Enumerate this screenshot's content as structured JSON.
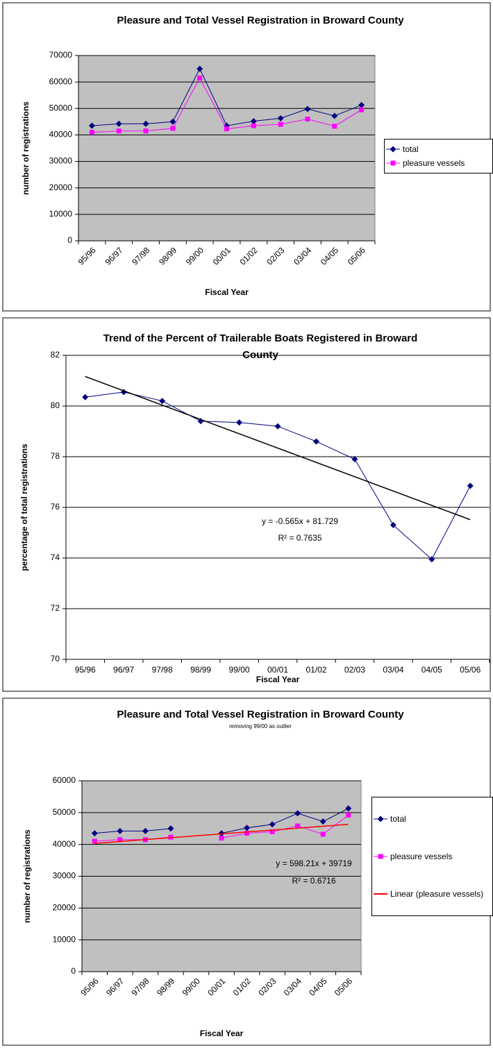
{
  "chart_data": [
    {
      "type": "line",
      "title": "Pleasure and Total Vessel Registration in Broward County",
      "x_label": "Fiscal Year",
      "y_label": "number of registrations",
      "categories": [
        "95/96",
        "96/97",
        "97/98",
        "98/99",
        "99/00",
        "00/01",
        "01/02",
        "02/03",
        "03/04",
        "04/05",
        "05/06"
      ],
      "series": [
        {
          "name": "total",
          "color": "#000080",
          "marker": "diamond",
          "values": [
            43500,
            44200,
            44200,
            45000,
            65000,
            43500,
            45200,
            46300,
            49800,
            47200,
            51300
          ]
        },
        {
          "name": "pleasure vessels",
          "color": "#ff00ff",
          "marker": "square",
          "values": [
            41000,
            41500,
            41500,
            42500,
            61500,
            42300,
            43500,
            44000,
            46000,
            43300,
            49500
          ]
        }
      ],
      "ylim": [
        0,
        70000
      ],
      "yticks": [
        0,
        10000,
        20000,
        30000,
        40000,
        50000,
        60000,
        70000
      ],
      "grid": true,
      "plot_background": "#c0c0c0",
      "legend": "right"
    },
    {
      "type": "line",
      "title": "Trend of the Percent of Trailerable Boats Registered in Broward County",
      "x_label": "Fiscal Year",
      "y_label": "percentage of total registrations",
      "categories": [
        "95/96",
        "96/97",
        "97/98",
        "98/99",
        "99/00",
        "00/01",
        "01/02",
        "02/03",
        "03/04",
        "04/05",
        "05/06"
      ],
      "series": [
        {
          "color": "#000080",
          "marker": "diamond",
          "values": [
            80.35,
            80.55,
            80.2,
            79.4,
            79.35,
            79.2,
            78.6,
            77.9,
            75.3,
            73.95,
            76.85
          ]
        }
      ],
      "trendline": {
        "color": "#000000",
        "slope": -0.565,
        "intercept": 81.729
      },
      "annotations": [
        "y = -0.565x + 81.729",
        "R² = 0.7635"
      ],
      "ylim": [
        70,
        82
      ],
      "yticks": [
        70,
        72,
        74,
        76,
        78,
        80,
        82
      ],
      "grid": true,
      "plot_background": "#ffffff"
    },
    {
      "type": "line",
      "title": "Pleasure and Total Vessel Registration in Broward County",
      "subtitle": "removing 99/00 as outlier",
      "x_label": "Fiscal Year",
      "y_label": "number of registrations",
      "categories": [
        "95/96",
        "96/97",
        "97/98",
        "98/99",
        "99/00",
        "00/01",
        "01/02",
        "02/03",
        "03/04",
        "04/05",
        "05/06"
      ],
      "series": [
        {
          "name": "total",
          "color": "#000080",
          "marker": "diamond",
          "values": [
            43500,
            44200,
            44200,
            45000,
            null,
            43500,
            45200,
            46300,
            49800,
            47200,
            51300
          ]
        },
        {
          "name": "pleasure vessels",
          "color": "#ff00ff",
          "marker": "square",
          "values": [
            41000,
            41500,
            41500,
            42300,
            null,
            42000,
            43500,
            44000,
            45800,
            43200,
            49200
          ]
        }
      ],
      "trendline": {
        "name": "Linear (pleasure vessels)",
        "color": "#ff0000",
        "slope": 598.21,
        "intercept": 39719
      },
      "annotations": [
        "y = 598.21x + 39719",
        "R² = 0.6716"
      ],
      "ylim": [
        0,
        60000
      ],
      "yticks": [
        0,
        10000,
        20000,
        30000,
        40000,
        50000,
        60000
      ],
      "grid": true,
      "plot_background": "#c0c0c0",
      "legend": "right"
    }
  ]
}
